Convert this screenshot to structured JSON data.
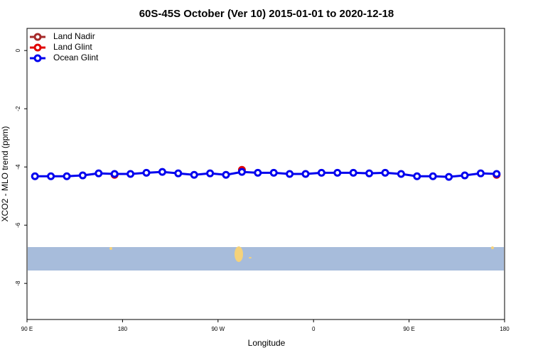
{
  "chart_data": {
    "type": "line",
    "title": "60S-45S October (Ver 10)   2015-01-01 to 2020-12-18",
    "x_label": "Longitude",
    "y_label": "XCO2 - MLO trend (ppm)",
    "xlim": [
      90,
      540
    ],
    "ylim": [
      -9.24,
      0.76
    ],
    "xticks": [
      {
        "value": 90,
        "label": "90 E"
      },
      {
        "value": 180,
        "label": "180"
      },
      {
        "value": 270,
        "label": "90 W"
      },
      {
        "value": 360,
        "label": "0"
      },
      {
        "value": 450,
        "label": "90 E"
      },
      {
        "value": 540,
        "label": "180"
      }
    ],
    "yticks": [
      0,
      -2,
      -4,
      -6,
      -8
    ],
    "legend": "top-left",
    "series": [
      {
        "name": "Land Nadir",
        "color": "#a52a2a",
        "x": [],
        "values": []
      },
      {
        "name": "Land Glint",
        "color": "#e00000",
        "x": [
          172.5,
          292.5,
          532.5
        ],
        "values": [
          -4.27,
          -4.1,
          -4.27
        ]
      },
      {
        "name": "Ocean Glint",
        "color": "#0000ee",
        "x": [
          97.5,
          112.5,
          127.5,
          142.5,
          157.5,
          172.5,
          187.5,
          202.5,
          217.5,
          232.5,
          247.5,
          262.5,
          277.5,
          292.5,
          307.5,
          322.5,
          337.5,
          352.5,
          367.5,
          382.5,
          397.5,
          412.5,
          427.5,
          442.5,
          457.5,
          472.5,
          487.5,
          502.5,
          517.5,
          532.5
        ],
        "values": [
          -4.32,
          -4.32,
          -4.32,
          -4.29,
          -4.22,
          -4.24,
          -4.24,
          -4.2,
          -4.17,
          -4.22,
          -4.27,
          -4.22,
          -4.27,
          -4.17,
          -4.2,
          -4.2,
          -4.24,
          -4.24,
          -4.2,
          -4.2,
          -4.2,
          -4.22,
          -4.2,
          -4.24,
          -4.32,
          -4.32,
          -4.34,
          -4.29,
          -4.22,
          -4.24
        ]
      }
    ]
  }
}
